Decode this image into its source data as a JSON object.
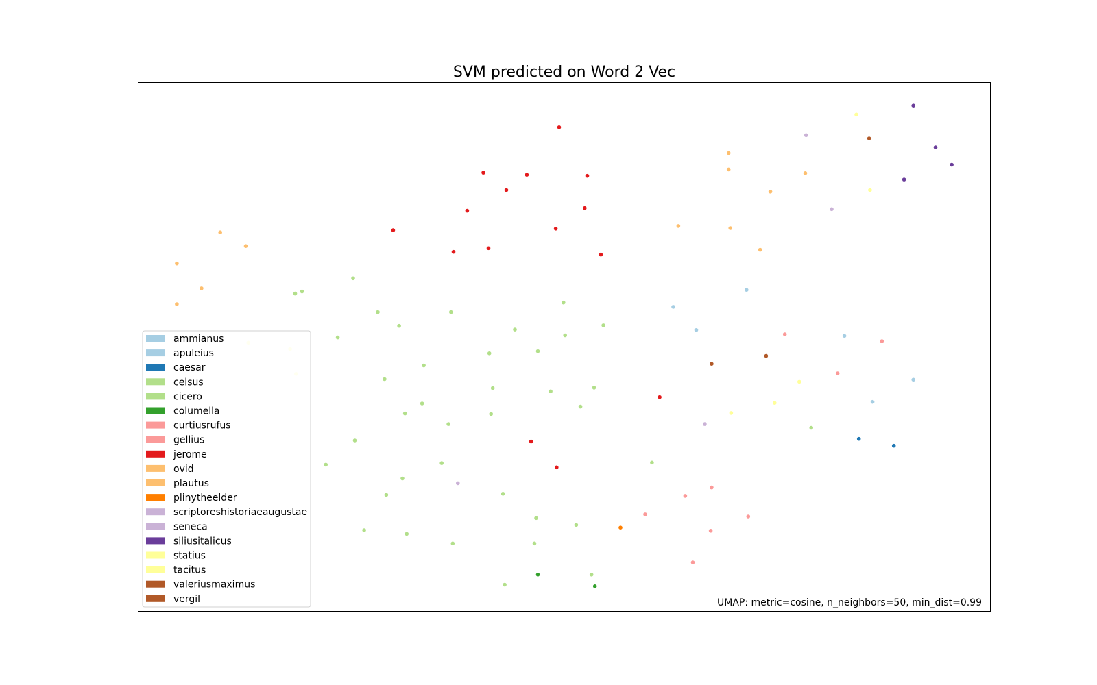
{
  "chart_data": {
    "type": "scatter",
    "title": "SVM predicted on Word 2 Vec",
    "xlabel": "",
    "ylabel": "",
    "grid": false,
    "axes_ticks": false,
    "legend_position": "lower-left",
    "annotation": "UMAP: metric=cosine, n_neighbors=50, min_dist=0.99",
    "legend": [
      {
        "name": "ammianus",
        "color": "#a6cee3"
      },
      {
        "name": "apuleius",
        "color": "#a6cee3"
      },
      {
        "name": "caesar",
        "color": "#1f78b4"
      },
      {
        "name": "celsus",
        "color": "#b2df8a"
      },
      {
        "name": "cicero",
        "color": "#b2df8a"
      },
      {
        "name": "columella",
        "color": "#33a02c"
      },
      {
        "name": "curtiusrufus",
        "color": "#fb9a99"
      },
      {
        "name": "gellius",
        "color": "#fb9a99"
      },
      {
        "name": "jerome",
        "color": "#e31a1c"
      },
      {
        "name": "ovid",
        "color": "#fdbf6f"
      },
      {
        "name": "plautus",
        "color": "#fdbf6f"
      },
      {
        "name": "plinytheelder",
        "color": "#ff7f00"
      },
      {
        "name": "scriptoreshistoriaeaugustae",
        "color": "#cab2d6"
      },
      {
        "name": "seneca",
        "color": "#cab2d6"
      },
      {
        "name": "siliusitalicus",
        "color": "#6a3d9a"
      },
      {
        "name": "statius",
        "color": "#ffff99"
      },
      {
        "name": "tacitus",
        "color": "#ffff99"
      },
      {
        "name": "valeriusmaximus",
        "color": "#b15928"
      },
      {
        "name": "vergil",
        "color": "#b15928"
      }
    ],
    "xlim": [
      0,
      100
    ],
    "ylim": [
      0,
      100
    ],
    "series": [
      {
        "name": "jerome",
        "color": "#e31a1c",
        "points": [
          [
            49.4,
            91.6
          ],
          [
            40.5,
            83.0
          ],
          [
            45.6,
            82.6
          ],
          [
            52.7,
            82.4
          ],
          [
            43.2,
            79.7
          ],
          [
            38.6,
            75.8
          ],
          [
            52.4,
            76.3
          ],
          [
            29.9,
            72.1
          ],
          [
            49.0,
            72.4
          ],
          [
            37.0,
            68.0
          ],
          [
            41.1,
            68.7
          ],
          [
            54.3,
            67.5
          ],
          [
            61.2,
            40.5
          ],
          [
            46.1,
            32.1
          ],
          [
            49.1,
            27.2
          ]
        ]
      },
      {
        "name": "ovid",
        "color": "#fdbf6f",
        "points": [
          [
            69.3,
            86.7
          ],
          [
            69.3,
            83.6
          ],
          [
            74.2,
            79.4
          ],
          [
            78.3,
            82.9
          ],
          [
            63.4,
            72.9
          ],
          [
            69.5,
            72.5
          ],
          [
            73.0,
            68.4
          ],
          [
            9.6,
            71.7
          ],
          [
            12.6,
            69.1
          ],
          [
            4.5,
            65.8
          ],
          [
            7.4,
            61.1
          ],
          [
            4.5,
            58.1
          ]
        ]
      },
      {
        "name": "siliusitalicus",
        "color": "#6a3d9a",
        "points": [
          [
            91.0,
            95.7
          ],
          [
            93.6,
            87.8
          ],
          [
            95.5,
            84.5
          ],
          [
            89.9,
            81.7
          ]
        ]
      },
      {
        "name": "tacitus",
        "color": "#ffff99",
        "points": [
          [
            84.3,
            94.0
          ],
          [
            85.9,
            79.7
          ],
          [
            77.6,
            43.4
          ],
          [
            74.7,
            39.4
          ],
          [
            69.6,
            37.5
          ]
        ]
      },
      {
        "name": "vergil",
        "color": "#b15928",
        "points": [
          [
            85.8,
            89.5
          ],
          [
            67.3,
            46.8
          ],
          [
            73.7,
            48.3
          ]
        ]
      },
      {
        "name": "seneca",
        "color": "#cab2d6",
        "points": [
          [
            78.4,
            90.1
          ],
          [
            81.4,
            76.1
          ],
          [
            66.5,
            35.4
          ],
          [
            37.5,
            24.2
          ]
        ]
      },
      {
        "name": "apuleius",
        "color": "#a6cee3",
        "points": [
          [
            71.4,
            60.8
          ],
          [
            62.8,
            57.6
          ],
          [
            65.5,
            53.2
          ],
          [
            82.9,
            52.1
          ],
          [
            91.0,
            43.8
          ],
          [
            86.2,
            39.6
          ]
        ]
      },
      {
        "name": "gellius",
        "color": "#fb9a99",
        "points": [
          [
            75.9,
            52.4
          ],
          [
            87.3,
            51.1
          ],
          [
            82.1,
            45.0
          ],
          [
            67.3,
            23.4
          ],
          [
            64.2,
            21.8
          ],
          [
            59.5,
            18.3
          ],
          [
            71.6,
            17.9
          ],
          [
            67.2,
            15.2
          ],
          [
            65.1,
            9.2
          ]
        ]
      },
      {
        "name": "caesar",
        "color": "#1f78b4",
        "points": [
          [
            84.6,
            32.6
          ],
          [
            88.7,
            31.3
          ]
        ]
      },
      {
        "name": "plinytheelder",
        "color": "#ff7f00",
        "points": [
          [
            56.6,
            15.8
          ]
        ]
      },
      {
        "name": "columella",
        "color": "#33a02c",
        "points": [
          [
            46.9,
            6.9
          ],
          [
            53.6,
            4.7
          ]
        ]
      },
      {
        "name": "statius",
        "color": "#ffff99",
        "points": [
          [
            12.9,
            50.8
          ],
          [
            17.8,
            49.6
          ],
          [
            18.5,
            44.9
          ]
        ]
      },
      {
        "name": "celsus",
        "color": "#b2df8a",
        "points": [
          [
            25.2,
            63.0
          ],
          [
            18.4,
            60.1
          ],
          [
            19.2,
            60.5
          ],
          [
            28.1,
            56.6
          ],
          [
            36.7,
            56.6
          ],
          [
            30.6,
            54.0
          ],
          [
            23.4,
            51.8
          ],
          [
            49.9,
            58.4
          ],
          [
            44.2,
            53.3
          ],
          [
            50.1,
            52.2
          ],
          [
            54.6,
            54.1
          ],
          [
            41.2,
            48.8
          ],
          [
            46.9,
            49.2
          ],
          [
            33.5,
            46.5
          ],
          [
            28.9,
            43.9
          ],
          [
            41.6,
            42.2
          ],
          [
            48.4,
            41.6
          ],
          [
            53.5,
            42.3
          ],
          [
            33.3,
            39.3
          ],
          [
            31.3,
            37.4
          ],
          [
            41.4,
            37.3
          ],
          [
            36.4,
            35.4
          ],
          [
            51.9,
            38.7
          ],
          [
            79.0,
            34.7
          ],
          [
            25.4,
            32.3
          ],
          [
            22.0,
            27.7
          ],
          [
            35.6,
            28.0
          ],
          [
            60.3,
            28.1
          ],
          [
            31.0,
            25.1
          ],
          [
            29.1,
            22.0
          ],
          [
            42.8,
            22.2
          ],
          [
            46.7,
            17.6
          ],
          [
            51.4,
            16.3
          ],
          [
            26.5,
            15.3
          ],
          [
            31.5,
            14.6
          ],
          [
            36.9,
            12.8
          ],
          [
            46.5,
            12.8
          ],
          [
            53.2,
            6.9
          ],
          [
            43.0,
            5.0
          ]
        ]
      }
    ]
  }
}
